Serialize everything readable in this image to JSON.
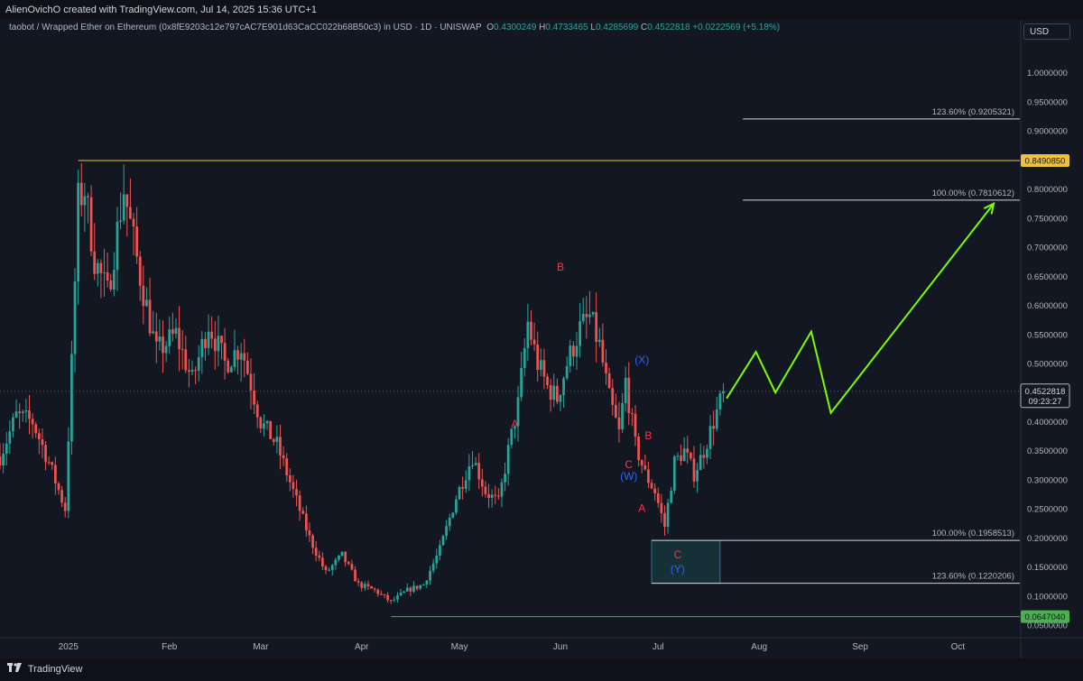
{
  "header": {
    "attribution": "AlienOvichO created with TradingView.com, Jul 14, 2025 15:36 UTC+1",
    "symbol_line": "taobot / Wrapped Ether on Ethereum (0x8fE9203c12e797cAC7E901d63CaCC022b68B50c3) in USD · 1D · UNISWAP",
    "ohlc": {
      "o_label": "O",
      "o": "0.4300249",
      "h_label": "H",
      "h": "0.4733465",
      "l_label": "L",
      "l": "0.4285699",
      "c_label": "C",
      "c": "0.4522818",
      "change": "+0.0222569 (+5.18%)"
    },
    "currency_button": "USD"
  },
  "footer": {
    "brand": "TradingView",
    "logo": "tv-logo-icon"
  },
  "colors": {
    "background": "#131722",
    "up": "#26a69a",
    "down": "#ef5350",
    "wave_red": "#f23645",
    "wave_blue": "#2962ff",
    "projection": "#7cfc00",
    "high_line": "#f0c040",
    "low_line": "#4caf50"
  },
  "chart_data": {
    "type": "candlestick",
    "y_axis": {
      "min": 0.03,
      "max": 1.06,
      "ticks": [
        "1.0000000",
        "0.9500000",
        "0.9000000",
        "0.8500000",
        "0.8000000",
        "0.7500000",
        "0.7000000",
        "0.6500000",
        "0.6000000",
        "0.5500000",
        "0.5000000",
        "0.4500000",
        "0.4000000",
        "0.3500000",
        "0.3000000",
        "0.2500000",
        "0.2000000",
        "0.1500000",
        "0.1000000",
        "0.0500000"
      ],
      "tick_values": [
        1.0,
        0.95,
        0.9,
        0.85,
        0.8,
        0.75,
        0.7,
        0.65,
        0.6,
        0.55,
        0.5,
        0.45,
        0.4,
        0.35,
        0.3,
        0.25,
        0.2,
        0.15,
        0.1,
        0.05
      ]
    },
    "x_axis": {
      "labels": [
        {
          "text": "2025",
          "date": "2025-01-01"
        },
        {
          "text": "Feb",
          "date": "2025-02-01"
        },
        {
          "text": "Mar",
          "date": "2025-03-01"
        },
        {
          "text": "Apr",
          "date": "2025-04-01"
        },
        {
          "text": "May",
          "date": "2025-05-01"
        },
        {
          "text": "Jun",
          "date": "2025-06-01"
        },
        {
          "text": "Jul",
          "date": "2025-07-01"
        },
        {
          "text": "Aug",
          "date": "2025-08-01"
        },
        {
          "text": "Sep",
          "date": "2025-09-01"
        },
        {
          "text": "Oct",
          "date": "2025-10-01"
        }
      ],
      "first_date": "2024-12-11",
      "last_date": "2025-10-20"
    },
    "price_path": [
      {
        "date": "2024-12-11",
        "price": 0.34
      },
      {
        "date": "2024-12-16",
        "price": 0.41
      },
      {
        "date": "2024-12-21",
        "price": 0.4
      },
      {
        "date": "2024-12-26",
        "price": 0.33
      },
      {
        "date": "2024-12-31",
        "price": 0.25
      },
      {
        "date": "2025-01-02",
        "price": 0.5
      },
      {
        "date": "2025-01-04",
        "price": 0.78
      },
      {
        "date": "2025-01-06",
        "price": 0.8
      },
      {
        "date": "2025-01-09",
        "price": 0.68
      },
      {
        "date": "2025-01-13",
        "price": 0.62
      },
      {
        "date": "2025-01-18",
        "price": 0.8
      },
      {
        "date": "2025-01-23",
        "price": 0.65
      },
      {
        "date": "2025-01-28",
        "price": 0.52
      },
      {
        "date": "2025-02-03",
        "price": 0.55
      },
      {
        "date": "2025-02-08",
        "price": 0.47
      },
      {
        "date": "2025-02-13",
        "price": 0.57
      },
      {
        "date": "2025-02-18",
        "price": 0.5
      },
      {
        "date": "2025-02-23",
        "price": 0.53
      },
      {
        "date": "2025-03-01",
        "price": 0.4
      },
      {
        "date": "2025-03-06",
        "price": 0.36
      },
      {
        "date": "2025-03-11",
        "price": 0.28
      },
      {
        "date": "2025-03-16",
        "price": 0.2
      },
      {
        "date": "2025-03-21",
        "price": 0.14
      },
      {
        "date": "2025-03-26",
        "price": 0.17
      },
      {
        "date": "2025-03-31",
        "price": 0.12
      },
      {
        "date": "2025-04-05",
        "price": 0.11
      },
      {
        "date": "2025-04-10",
        "price": 0.09
      },
      {
        "date": "2025-04-15",
        "price": 0.11
      },
      {
        "date": "2025-04-20",
        "price": 0.12
      },
      {
        "date": "2025-04-25",
        "price": 0.18
      },
      {
        "date": "2025-04-30",
        "price": 0.27
      },
      {
        "date": "2025-05-05",
        "price": 0.34
      },
      {
        "date": "2025-05-09",
        "price": 0.28
      },
      {
        "date": "2025-05-13",
        "price": 0.26
      },
      {
        "date": "2025-05-16",
        "price": 0.35
      },
      {
        "date": "2025-05-19",
        "price": 0.43
      },
      {
        "date": "2025-05-22",
        "price": 0.57
      },
      {
        "date": "2025-05-25",
        "price": 0.5
      },
      {
        "date": "2025-05-28",
        "price": 0.46
      },
      {
        "date": "2025-05-31",
        "price": 0.44
      },
      {
        "date": "2025-06-03",
        "price": 0.5
      },
      {
        "date": "2025-06-07",
        "price": 0.56
      },
      {
        "date": "2025-06-10",
        "price": 0.58
      },
      {
        "date": "2025-06-13",
        "price": 0.53
      },
      {
        "date": "2025-06-16",
        "price": 0.44
      },
      {
        "date": "2025-06-19",
        "price": 0.38
      },
      {
        "date": "2025-06-21",
        "price": 0.47
      },
      {
        "date": "2025-06-24",
        "price": 0.36
      },
      {
        "date": "2025-06-27",
        "price": 0.31
      },
      {
        "date": "2025-06-30",
        "price": 0.28
      },
      {
        "date": "2025-07-03",
        "price": 0.22
      },
      {
        "date": "2025-07-06",
        "price": 0.33
      },
      {
        "date": "2025-07-09",
        "price": 0.35
      },
      {
        "date": "2025-07-12",
        "price": 0.31
      },
      {
        "date": "2025-07-15",
        "price": 0.35
      },
      {
        "date": "2025-07-18",
        "price": 0.4
      },
      {
        "date": "2025-07-21",
        "price": 0.45
      }
    ],
    "current_price": {
      "value": 0.4522818,
      "label": "0.4522818",
      "countdown": "09:23:27"
    },
    "horizontal_levels": [
      {
        "price": 0.849085,
        "label": "0.8490850",
        "start_date": "2025-01-04",
        "kind": "high"
      },
      {
        "price": 0.064704,
        "label": "0.0647040",
        "start_date": "2025-04-10",
        "kind": "low"
      }
    ],
    "fib_levels": [
      {
        "price": 0.9205321,
        "text": "123.60% (0.9205321)",
        "start_date": "2025-07-27",
        "end_date": "2025-10-20"
      },
      {
        "price": 0.7810612,
        "text": "100.00% (0.7810612)",
        "start_date": "2025-07-27",
        "end_date": "2025-10-20"
      },
      {
        "price": 0.1958513,
        "text": "100.00% (0.1958513)",
        "start_date": "2025-06-29",
        "end_date": "2025-10-20"
      },
      {
        "price": 0.1220206,
        "text": "123.60% (0.1220206)",
        "start_date": "2025-06-29",
        "end_date": "2025-10-20"
      }
    ],
    "target_box": {
      "start_date": "2025-06-29",
      "end_date": "2025-07-20",
      "top": 0.1958513,
      "bottom": 0.1220206
    },
    "wave_labels": [
      {
        "text": "A",
        "date": "2025-05-18",
        "price": 0.39,
        "color": "red"
      },
      {
        "text": "B",
        "date": "2025-06-01",
        "price": 0.66,
        "color": "red"
      },
      {
        "text": "(X)",
        "date": "2025-06-26",
        "price": 0.5,
        "color": "blue"
      },
      {
        "text": "C",
        "date": "2025-06-22",
        "price": 0.32,
        "color": "red"
      },
      {
        "text": "(W)",
        "date": "2025-06-22",
        "price": 0.3,
        "color": "blue"
      },
      {
        "text": "B",
        "date": "2025-06-28",
        "price": 0.37,
        "color": "red"
      },
      {
        "text": "A",
        "date": "2025-06-26",
        "price": 0.245,
        "color": "red"
      },
      {
        "text": "C",
        "date": "2025-07-07",
        "price": 0.165,
        "color": "red"
      },
      {
        "text": "(Y)",
        "date": "2025-07-07",
        "price": 0.14,
        "color": "blue"
      }
    ],
    "projection": [
      {
        "date": "2025-07-22",
        "price": 0.44
      },
      {
        "date": "2025-07-31",
        "price": 0.52
      },
      {
        "date": "2025-08-06",
        "price": 0.45
      },
      {
        "date": "2025-08-17",
        "price": 0.555
      },
      {
        "date": "2025-08-23",
        "price": 0.415
      },
      {
        "date": "2025-10-12",
        "price": 0.775
      }
    ]
  }
}
